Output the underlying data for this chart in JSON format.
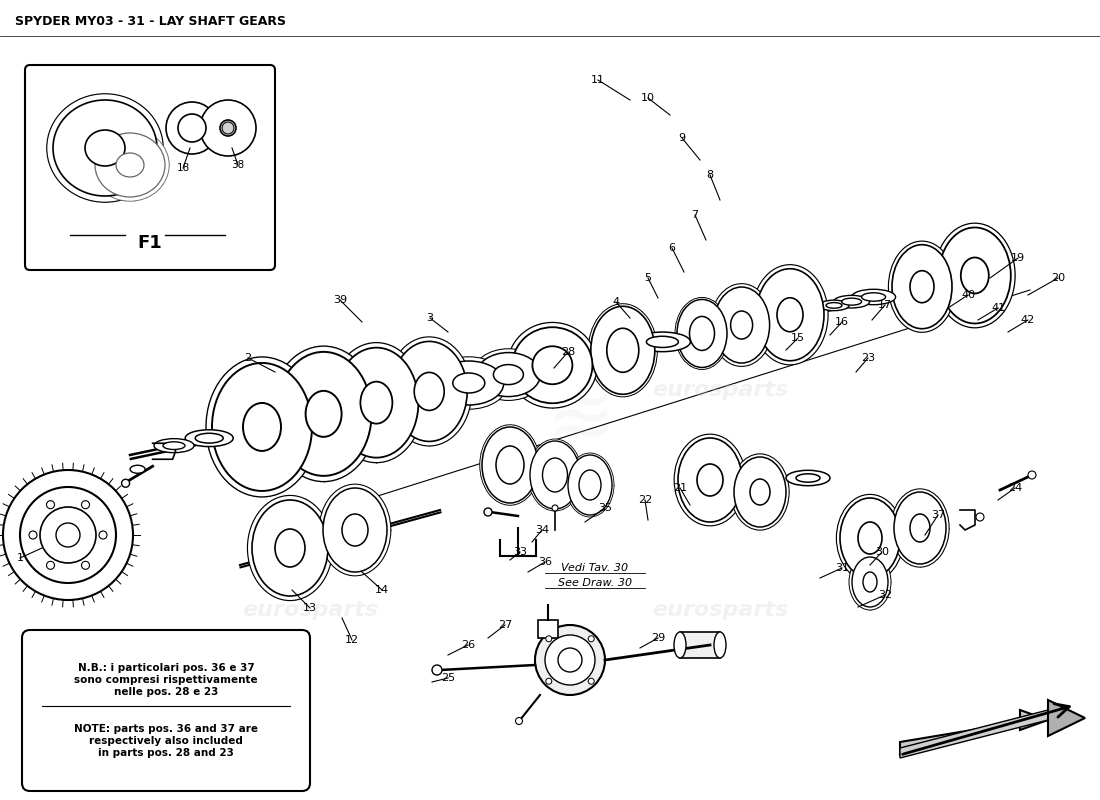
{
  "title": "SPYDER MY03 - 31 - LAY SHAFT GEARS",
  "title_fontsize": 9,
  "title_fontweight": "bold",
  "background_color": "#ffffff",
  "note_italian": "N.B.: i particolari pos. 36 e 37\nsono compresi rispettivamente\nnelle pos. 28 e 23",
  "note_english": "NOTE: parts pos. 36 and 37 are\nrespectively also included\nin parts pos. 28 and 23",
  "f1_label": "F1",
  "watermark": "eurosparts",
  "fig_width": 11.0,
  "fig_height": 8.0
}
